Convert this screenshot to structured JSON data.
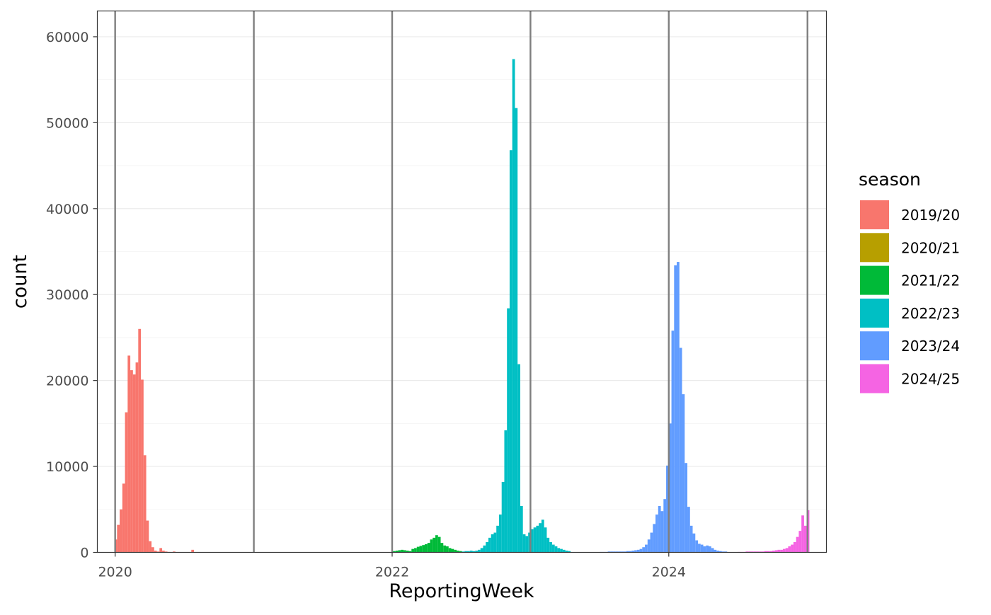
{
  "chart_data": {
    "type": "bar",
    "xlabel": "ReportingWeek",
    "ylabel": "count",
    "xlim": [
      "2019-11-15",
      "2025-02-20"
    ],
    "ylim": [
      0,
      63000
    ],
    "x_ticks": [
      "2020",
      "2022",
      "2024"
    ],
    "y_ticks": [
      "0",
      "10000",
      "20000",
      "30000",
      "40000",
      "50000",
      "60000"
    ],
    "grid": true,
    "vertical_reference_lines": [
      "2020-01-01",
      "2021-01-01",
      "2022-01-01",
      "2023-01-01",
      "2024-01-01",
      "2025-01-01"
    ],
    "legend": {
      "title": "season",
      "position": "right"
    },
    "series": [
      {
        "name": "2019/20",
        "color": "#F8766D",
        "start_week": "2019-12-30",
        "values": [
          1500,
          3200,
          5000,
          8000,
          16300,
          22900,
          21200,
          20700,
          22100,
          26000,
          20100,
          11300,
          3700,
          1300,
          600,
          200,
          100,
          500,
          200,
          100,
          50,
          0,
          100,
          0,
          0,
          0,
          0,
          0,
          0,
          300,
          0,
          0,
          0
        ]
      },
      {
        "name": "2020/21",
        "color": "#B79F00",
        "start_week": "2020-07-06",
        "values": []
      },
      {
        "name": "2021/22",
        "color": "#00BA38",
        "start_week": "2022-01-03",
        "values": [
          150,
          200,
          250,
          300,
          250,
          200,
          150,
          400,
          500,
          650,
          750,
          850,
          950,
          1100,
          1500,
          1700,
          2000,
          1800,
          1100,
          800,
          700,
          500,
          400,
          300,
          200,
          150
        ]
      },
      {
        "name": "2022/23",
        "color": "#00BFC4",
        "start_week": "2022-07-04",
        "values": [
          100,
          150,
          150,
          200,
          150,
          200,
          300,
          500,
          800,
          1200,
          1700,
          2100,
          2300,
          3100,
          4400,
          8200,
          14200,
          28400,
          46800,
          57400,
          51700,
          21900,
          5400,
          2100,
          1900,
          2300,
          2700,
          2900,
          3100,
          3400,
          3800,
          2900,
          1700,
          1200,
          900,
          700,
          500,
          400,
          300,
          200,
          150
        ]
      },
      {
        "name": "2023/24",
        "color": "#619CFF",
        "start_week": "2023-07-03",
        "values": [
          50,
          50,
          50,
          100,
          100,
          100,
          100,
          100,
          100,
          100,
          150,
          150,
          200,
          250,
          300,
          400,
          600,
          900,
          1500,
          2300,
          3300,
          4400,
          5400,
          4800,
          6200,
          10100,
          15000,
          25800,
          33400,
          33800,
          23800,
          18400,
          10400,
          5300,
          3100,
          2200,
          1400,
          1000,
          900,
          700,
          800,
          700,
          500,
          300,
          200,
          150,
          100,
          100
        ]
      },
      {
        "name": "2024/25",
        "color": "#F564E3",
        "start_week": "2024-07-01",
        "values": [
          50,
          50,
          50,
          100,
          100,
          100,
          100,
          100,
          100,
          100,
          150,
          150,
          150,
          200,
          250,
          300,
          300,
          400,
          500,
          700,
          900,
          1200,
          1800,
          2500,
          4300,
          3100,
          4900
        ]
      }
    ]
  }
}
